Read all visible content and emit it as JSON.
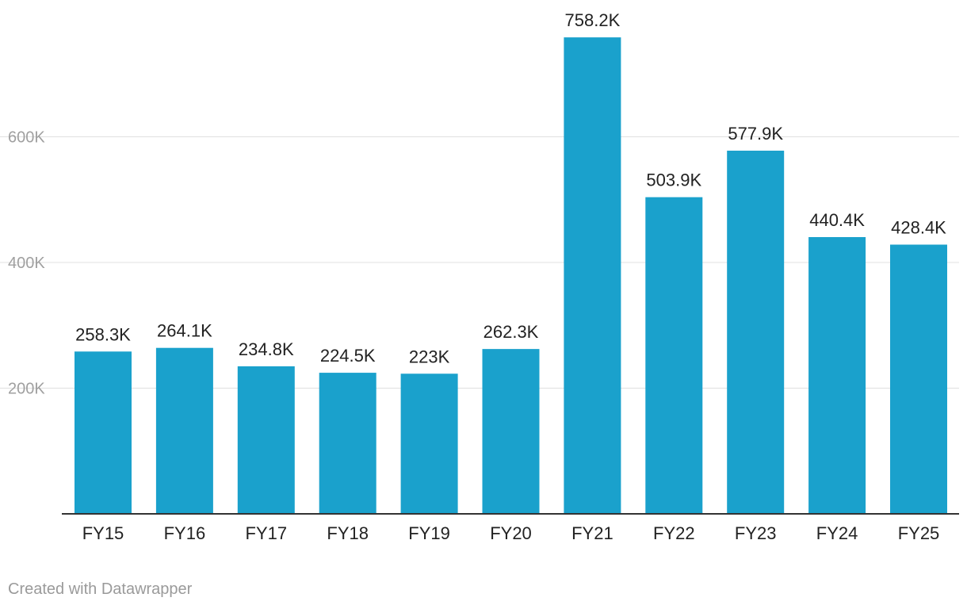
{
  "chart_data": {
    "type": "bar",
    "categories": [
      "FY15",
      "FY16",
      "FY17",
      "FY18",
      "FY19",
      "FY20",
      "FY21",
      "FY22",
      "FY23",
      "FY24",
      "FY25"
    ],
    "values": [
      258300,
      264100,
      234800,
      224500,
      223000,
      262300,
      758200,
      503900,
      577900,
      440400,
      428400
    ],
    "value_labels": [
      "258.3K",
      "264.1K",
      "234.8K",
      "224.5K",
      "223K",
      "262.3K",
      "758.2K",
      "503.9K",
      "577.9K",
      "440.4K",
      "428.4K"
    ],
    "ylim": [
      0,
      800000
    ],
    "y_ticks": [
      200000,
      400000,
      600000
    ],
    "y_tick_labels": [
      "200K",
      "400K",
      "600K"
    ],
    "grid": true,
    "colors": {
      "bar": "#1aa1cc",
      "grid": "#e0e0e0",
      "baseline": "#333333",
      "tick_label": "#a0a0a0",
      "value_label": "#222222",
      "category_label": "#222222"
    }
  },
  "footer": {
    "credit": "Created with Datawrapper"
  }
}
